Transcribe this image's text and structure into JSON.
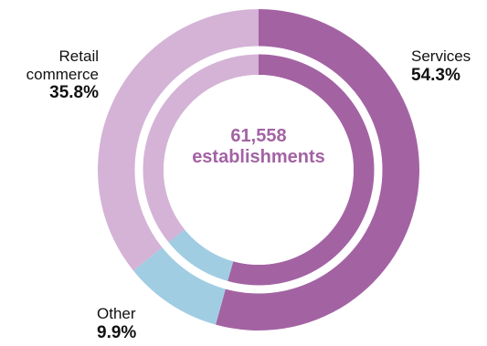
{
  "colors": {
    "services": "#a363a3",
    "retail": "#d4b3d6",
    "other": "#a1cde3",
    "center_text": "#a363a3"
  },
  "center": {
    "value": "61,558",
    "unit": "establishments"
  },
  "chart_data": {
    "type": "pie",
    "series": [
      {
        "name": "",
        "slices": [
          {
            "label_line1": "Services",
            "label_line2": "",
            "value": 54.3,
            "display": "54.3%"
          },
          {
            "label_line1": "Other",
            "label_line2": "",
            "value": 9.9,
            "display": "9.9%"
          },
          {
            "label_line1": "Retail",
            "label_line2": "commerce",
            "value": 35.8,
            "display": "35.8%"
          }
        ]
      }
    ],
    "legend": "none"
  }
}
